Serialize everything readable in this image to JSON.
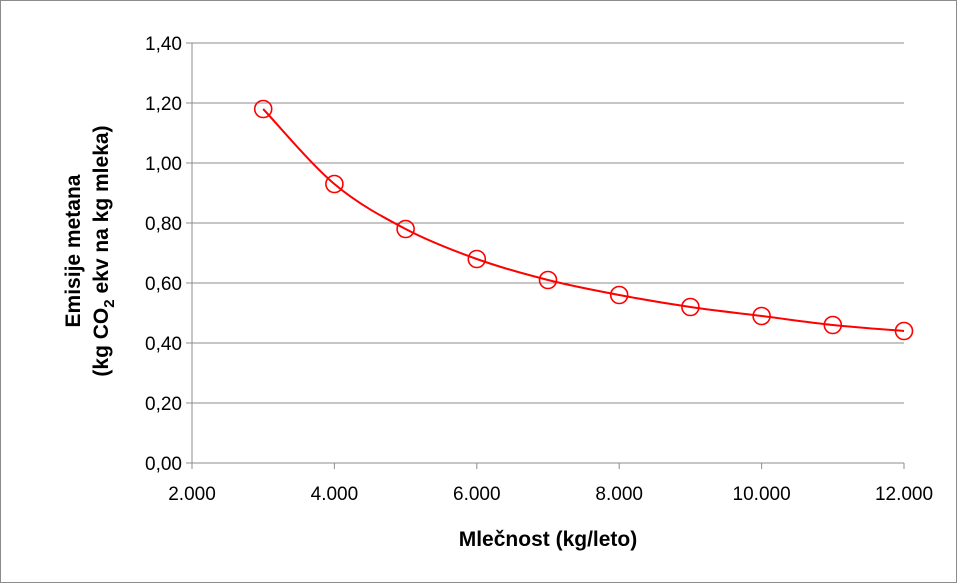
{
  "chart_data": {
    "type": "line",
    "x": [
      3000,
      4000,
      5000,
      6000,
      7000,
      8000,
      9000,
      10000,
      11000,
      12000
    ],
    "series": [
      {
        "values": [
          1.18,
          0.93,
          0.78,
          0.68,
          0.61,
          0.56,
          0.52,
          0.49,
          0.46,
          0.44
        ],
        "color": "#ff0000",
        "marker": "open-circle"
      }
    ],
    "xlabel": "Mlečnost (kg/leto)",
    "ylabel_line1": "Emisije metana",
    "ylabel_line2_prefix": "(kg CO",
    "ylabel_line2_subscript": "2",
    "ylabel_line2_suffix": " ekv na kg mleka)",
    "xlim": [
      2000,
      12000
    ],
    "ylim": [
      0,
      1.4
    ],
    "x_ticks": [
      2000,
      4000,
      6000,
      8000,
      10000,
      12000
    ],
    "x_tick_labels": [
      "2.000",
      "4.000",
      "6.000",
      "8.000",
      "10.000",
      "12.000"
    ],
    "y_ticks": [
      0,
      0.2,
      0.4,
      0.6,
      0.8,
      1.0,
      1.2,
      1.4
    ],
    "y_tick_labels": [
      "0,00",
      "0,20",
      "0,40",
      "0,60",
      "0,80",
      "1,00",
      "1,20",
      "1,40"
    ],
    "grid": "horizontal",
    "legend": "none"
  }
}
